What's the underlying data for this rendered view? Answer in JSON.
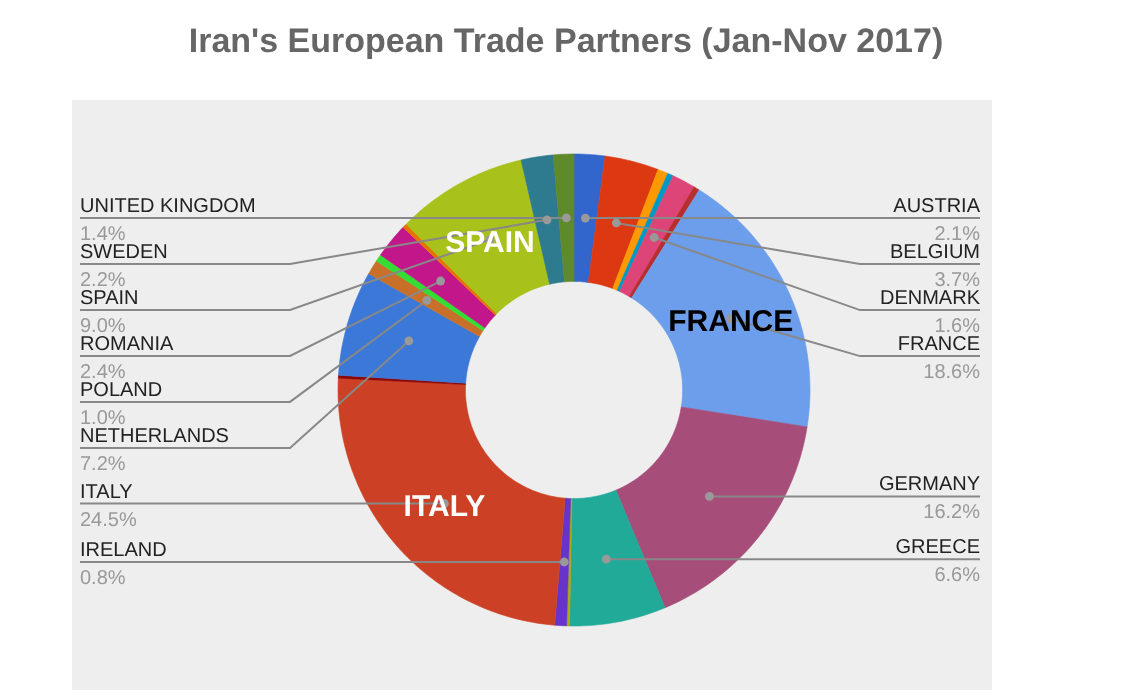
{
  "chart_data": {
    "type": "donut",
    "title": "Iran's European Trade Partners (Jan-Nov 2017)",
    "categories": [
      "AUSTRIA",
      "BELGIUM",
      null,
      null,
      "DENMARK",
      null,
      "FRANCE",
      "GERMANY",
      "GREECE",
      null,
      "IRELAND",
      "ITALY",
      null,
      "NETHERLANDS",
      "POLAND",
      null,
      "ROMANIA",
      null,
      "SPAIN",
      "SWEDEN",
      "UNITED KINGDOM"
    ],
    "values": [
      2.1,
      3.7,
      0.7,
      0.4,
      1.6,
      0.4,
      18.6,
      16.2,
      6.6,
      0.2,
      0.8,
      24.5,
      0.2,
      7.2,
      1.0,
      0.5,
      2.4,
      0.3,
      9.0,
      2.2,
      1.4
    ],
    "value_labels": [
      "2.1%",
      "3.7%",
      null,
      null,
      "1.6%",
      null,
      "18.6%",
      "16.2%",
      "6.6%",
      null,
      "0.8%",
      "24.5%",
      null,
      "7.2%",
      "1.0%",
      null,
      "2.4%",
      null,
      "9.0%",
      "2.2%",
      "1.4%"
    ],
    "colors": [
      "#3366cc",
      "#dc3912",
      "#ff9900",
      "#0099c6",
      "#dd4477",
      "#b82e2e",
      "#6d9eeb",
      "#a64d79",
      "#22aa99",
      "#aaaa11",
      "#6633cc",
      "#cc4125",
      "#8b0707",
      "#3c78d8",
      "#c8702a",
      "#33dd33",
      "#c2178a",
      "#e67300",
      "#a9c11b",
      "#2e7a8f",
      "#5f8a2a"
    ],
    "annotations": [
      {
        "text": "FRANCE",
        "x": "FRANCE"
      },
      {
        "text": "ITALY",
        "x": "ITALY"
      },
      {
        "text": "SPAIN",
        "x": "SPAIN"
      }
    ]
  }
}
